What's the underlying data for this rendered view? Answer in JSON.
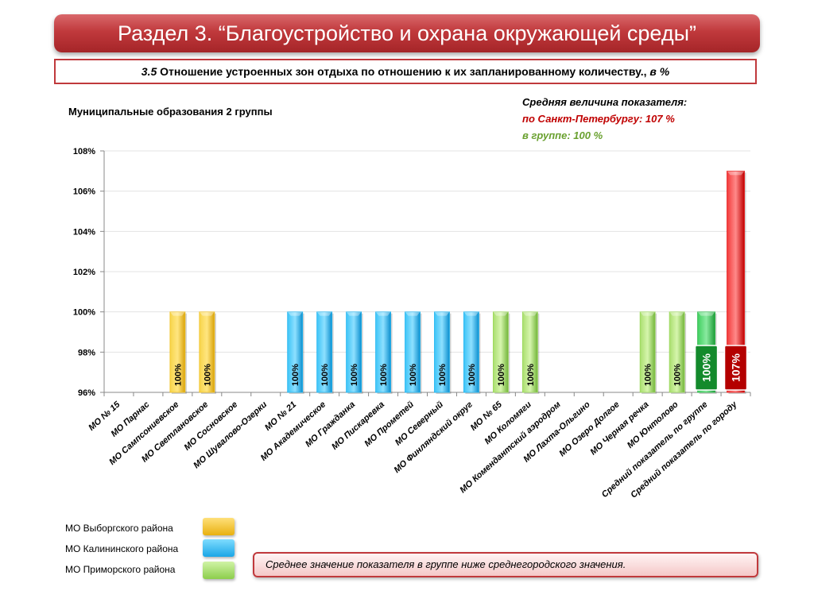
{
  "header": {
    "title": "Раздел 3. “Благоустройство и охрана окружающей среды”",
    "subtitle_num": "3.5",
    "subtitle_text": "Отношение устроенных зон отдыха по отношению к их запланированному количеству.,",
    "subtitle_unit": "в %"
  },
  "group_label": "Муниципальные образования 2 группы",
  "averages": {
    "heading": "Средняя величина показателя:",
    "city": "по Санкт-Петербургу:  107 %",
    "group": "в группе:  100 %"
  },
  "legend": [
    {
      "label": "МО Выборгского района",
      "color": "#f0c020"
    },
    {
      "label": "МО Калининского района",
      "color": "#1fb4f0"
    },
    {
      "label": "МО Приморского района",
      "color": "#9ad85a"
    }
  ],
  "note": "Среднее значение показателя в группе ниже среднегородского значения.",
  "chart_data": {
    "type": "bar",
    "ylim": [
      96,
      108
    ],
    "yticks": [
      "96%",
      "98%",
      "100%",
      "102%",
      "104%",
      "106%",
      "108%"
    ],
    "grid": true,
    "categories": [
      "МО № 15",
      "МО Парнас",
      "МО Сампсониевское",
      "МО Светлановское",
      "МО Сосновское",
      "МО Шувалово-Озерки",
      "МО № 21",
      "МО Академическое",
      "МО Гражданка",
      "МО Пискаревка",
      "МО Прометей",
      "МО Северный",
      "МО Финляндский округ",
      "МО № 65",
      "МО Коломяги",
      "МО Комендантский аэродром",
      "МО Лахта-Ольгино",
      "МО Озеро Долгое",
      "МО Черная речка",
      "МО Юнтолово",
      "Средний показатель по группе",
      "Средний показатель по городу"
    ],
    "values": [
      null,
      null,
      100,
      100,
      null,
      null,
      100,
      100,
      100,
      100,
      100,
      100,
      100,
      100,
      100,
      null,
      null,
      null,
      100,
      100,
      100,
      107
    ],
    "labels": [
      "",
      "",
      "100%",
      "100%",
      "",
      "",
      "100%",
      "100%",
      "100%",
      "100%",
      "100%",
      "100%",
      "100%",
      "100%",
      "100%",
      "",
      "",
      "",
      "100%",
      "100%",
      "100%",
      "107%"
    ],
    "bar_groups": [
      "",
      "",
      "vyborg",
      "vyborg",
      "",
      "",
      "kalinin",
      "kalinin",
      "kalinin",
      "kalinin",
      "kalinin",
      "kalinin",
      "kalinin",
      "primorsky",
      "primorsky",
      "",
      "",
      "",
      "primorsky",
      "primorsky",
      "group",
      "city"
    ],
    "colors": {
      "vyborg": "#f0c020",
      "kalinin": "#1fb4f0",
      "primorsky": "#9ad85a",
      "group": "#2eb84a",
      "city": "#e61c1c"
    }
  }
}
